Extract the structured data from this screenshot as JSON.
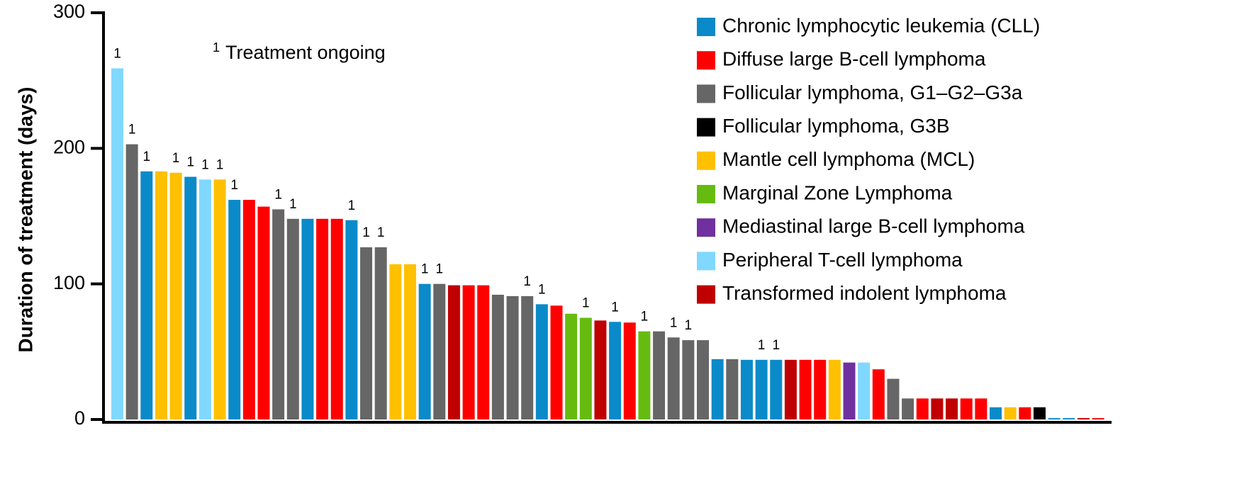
{
  "chart_data": {
    "type": "bar",
    "y_label": "Duration of treatment (days)",
    "note_marker": "1",
    "note": "Treatment ongoing",
    "legend": [
      {
        "name": "Chronic lymphocytic leukemia (CLL)",
        "color": "#0a8ac9"
      },
      {
        "name": "Diffuse large B-cell lymphoma",
        "color": "#ff0000"
      },
      {
        "name": "Follicular lymphoma, G1–G2–G3a",
        "color": "#666666"
      },
      {
        "name": "Follicular lymphoma, G3B",
        "color": "#000000"
      },
      {
        "name": "Mantle cell lymphoma (MCL)",
        "color": "#ffc000"
      },
      {
        "name": "Marginal Zone Lymphoma",
        "color": "#66bb11"
      },
      {
        "name": "Mediastinal large B-cell lymphoma",
        "color": "#7030a0"
      },
      {
        "name": "Peripheral T-cell lymphoma",
        "color": "#80d8ff"
      },
      {
        "name": "Transformed indolent lymphoma",
        "color": "#c00000"
      }
    ],
    "values": [
      259,
      203,
      183,
      183,
      182,
      179,
      177,
      177,
      162,
      162,
      157,
      155,
      148,
      148,
      148,
      148,
      147,
      127,
      127,
      114.5,
      114.5,
      100,
      100,
      99,
      99,
      99,
      92,
      91,
      91,
      85,
      84,
      78,
      75,
      73,
      72,
      71.5,
      65,
      65,
      60.5,
      58.5,
      58.5,
      44.5,
      44.5,
      44,
      44,
      44,
      44,
      44,
      44,
      44,
      42,
      42,
      37,
      30,
      15.5,
      15.5,
      15.5,
      15.5,
      15.5,
      15.5,
      9,
      9,
      9,
      9,
      1,
      1,
      1,
      1
    ],
    "groups": [
      7,
      2,
      0,
      4,
      4,
      0,
      7,
      4,
      0,
      1,
      1,
      2,
      2,
      0,
      1,
      1,
      0,
      2,
      2,
      4,
      4,
      0,
      2,
      8,
      1,
      1,
      2,
      2,
      2,
      0,
      1,
      5,
      5,
      8,
      0,
      1,
      5,
      2,
      2,
      2,
      2,
      0,
      2,
      0,
      0,
      0,
      8,
      1,
      1,
      4,
      6,
      7,
      1,
      2,
      2,
      1,
      8,
      8,
      1,
      1,
      0,
      4,
      1,
      3,
      0,
      0,
      8,
      1
    ],
    "markers": [
      "1",
      "1",
      "1",
      null,
      "1",
      "1",
      "1",
      "1",
      "1",
      null,
      null,
      "1",
      "1",
      null,
      null,
      null,
      "1",
      "1",
      "1",
      null,
      null,
      "1",
      "1",
      null,
      null,
      null,
      null,
      null,
      "1",
      "1",
      null,
      null,
      "1",
      null,
      "1",
      null,
      "1",
      null,
      "1",
      "1",
      null,
      null,
      null,
      null,
      "1",
      "1",
      null,
      null,
      null,
      null,
      null,
      null,
      null,
      null,
      null,
      null,
      null,
      null,
      null,
      null,
      null,
      null,
      null,
      null,
      null,
      null,
      null,
      null
    ],
    "ylim": [
      0,
      300
    ],
    "yticks": [
      0,
      100,
      200,
      300
    ]
  }
}
